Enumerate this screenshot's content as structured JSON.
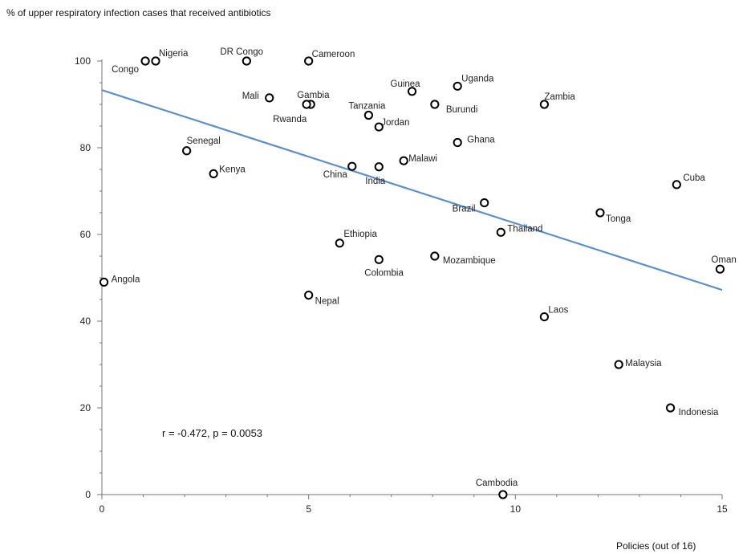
{
  "chart_data": {
    "type": "scatter",
    "title": "% of upper respiratory infection cases that received antibiotics",
    "xlabel": "Policies (out of 16)",
    "ylabel": "",
    "xlim": [
      0,
      15
    ],
    "ylim": [
      0,
      100
    ],
    "x_ticks": [
      0,
      5,
      10,
      15
    ],
    "y_ticks": [
      0,
      20,
      40,
      60,
      80,
      100
    ],
    "grid": false,
    "annotation": "r = -0.472, p = 0.0053",
    "trend_line": {
      "x": [
        0,
        15
      ],
      "y": [
        93.3,
        47.2
      ]
    },
    "colors": {
      "trend": "#5b8fd0",
      "marker": "#000000"
    },
    "points": [
      {
        "name": "Congo",
        "x": 1.05,
        "y": 100
      },
      {
        "name": "Nigeria",
        "x": 1.3,
        "y": 100
      },
      {
        "name": "DR Congo",
        "x": 3.5,
        "y": 100
      },
      {
        "name": "Cameroon",
        "x": 5.0,
        "y": 100
      },
      {
        "name": "Mali",
        "x": 4.05,
        "y": 91.5
      },
      {
        "name": "Gambia",
        "x": 5.05,
        "y": 90
      },
      {
        "name": "Rwanda",
        "x": 4.95,
        "y": 90
      },
      {
        "name": "Guinea",
        "x": 7.5,
        "y": 93
      },
      {
        "name": "Uganda",
        "x": 8.6,
        "y": 94.2
      },
      {
        "name": "Burundi",
        "x": 8.05,
        "y": 90
      },
      {
        "name": "Zambia",
        "x": 10.7,
        "y": 90
      },
      {
        "name": "Tanzania",
        "x": 6.45,
        "y": 87.5
      },
      {
        "name": "Jordan",
        "x": 6.7,
        "y": 84.8
      },
      {
        "name": "Ghana",
        "x": 8.6,
        "y": 81.2
      },
      {
        "name": "Senegal",
        "x": 2.05,
        "y": 79.3
      },
      {
        "name": "Malawi",
        "x": 7.3,
        "y": 77
      },
      {
        "name": "Kenya",
        "x": 2.7,
        "y": 74
      },
      {
        "name": "China",
        "x": 6.05,
        "y": 75.7
      },
      {
        "name": "India",
        "x": 6.7,
        "y": 75.6
      },
      {
        "name": "Cuba",
        "x": 13.9,
        "y": 71.5
      },
      {
        "name": "Brazil",
        "x": 9.25,
        "y": 67.3
      },
      {
        "name": "Tonga",
        "x": 12.05,
        "y": 65
      },
      {
        "name": "Thailand",
        "x": 9.65,
        "y": 60.5
      },
      {
        "name": "Ethiopia",
        "x": 5.75,
        "y": 58
      },
      {
        "name": "Mozambique",
        "x": 8.05,
        "y": 55
      },
      {
        "name": "Colombia",
        "x": 6.7,
        "y": 54.2
      },
      {
        "name": "Oman",
        "x": 14.95,
        "y": 52
      },
      {
        "name": "Angola",
        "x": 0.05,
        "y": 49
      },
      {
        "name": "Nepal",
        "x": 5.0,
        "y": 46
      },
      {
        "name": "Laos",
        "x": 10.7,
        "y": 41
      },
      {
        "name": "Malaysia",
        "x": 12.5,
        "y": 30
      },
      {
        "name": "Indonesia",
        "x": 13.75,
        "y": 20
      },
      {
        "name": "Cambodia",
        "x": 9.7,
        "y": 0
      }
    ]
  }
}
